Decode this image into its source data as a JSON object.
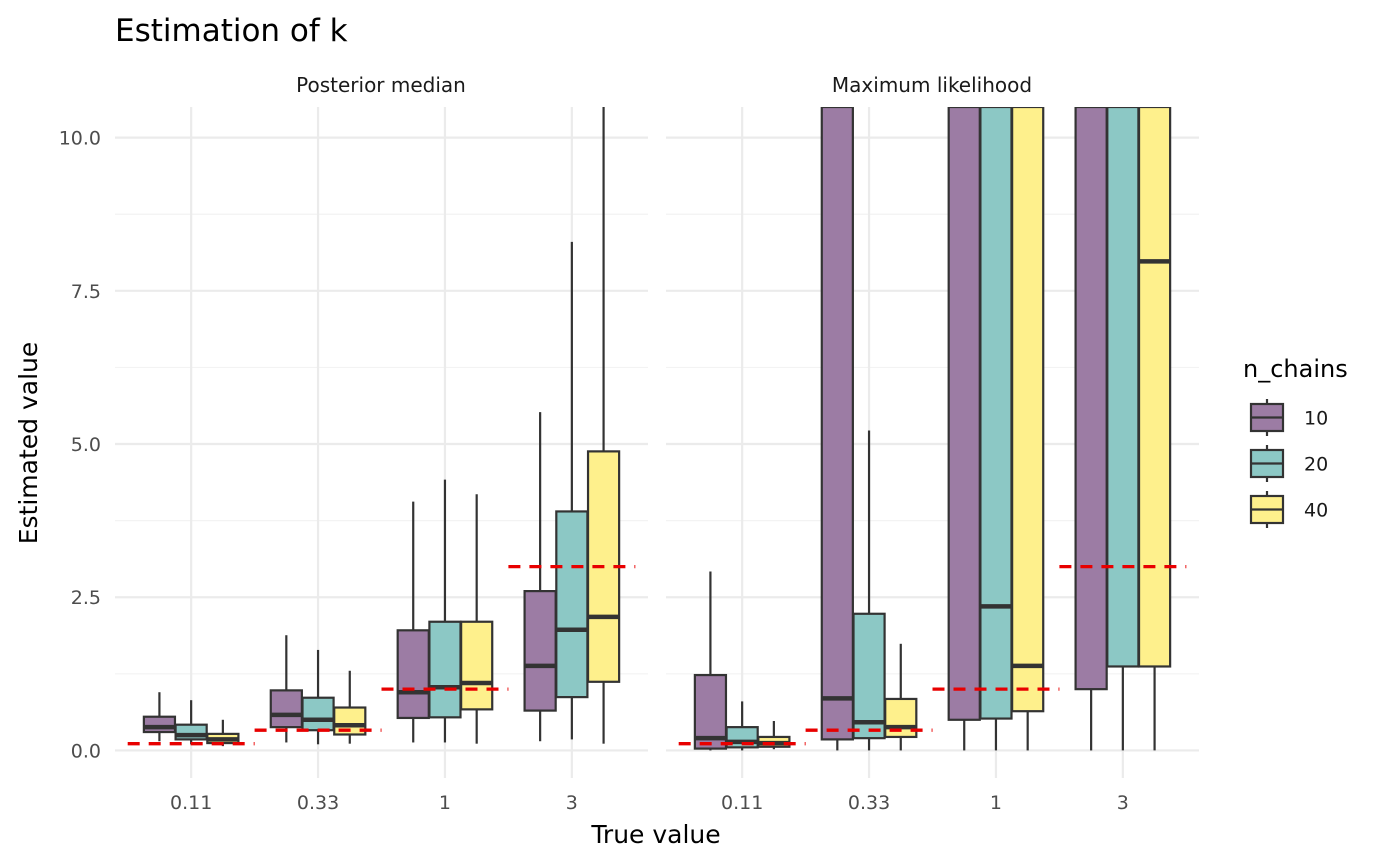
{
  "chart_data": {
    "type": "box",
    "title": "Estimation of k",
    "xlabel": "True value",
    "ylabel": "Estimated value",
    "ylim": [
      -0.45,
      10.5
    ],
    "yticks": [
      0,
      2.5,
      5,
      7.5,
      10
    ],
    "ytick_labels": [
      "0.0",
      "2.5",
      "5.0",
      "7.5",
      "10.0"
    ],
    "categories": [
      "0.11",
      "0.33",
      "1",
      "3"
    ],
    "true_values": [
      0.11,
      0.33,
      1,
      3
    ],
    "legend": {
      "title": "n_chains",
      "entries": [
        {
          "label": "10",
          "color": "#9C7CA4"
        },
        {
          "label": "20",
          "color": "#8CC8C5"
        },
        {
          "label": "40",
          "color": "#FEF08C"
        }
      ]
    },
    "reference_line_color": "#E80000",
    "panels": [
      {
        "name": "Posterior median",
        "boxes": [
          [
            {
              "lower": 0.15,
              "q1": 0.3,
              "median": 0.38,
              "q3": 0.55,
              "upper": 0.95
            },
            {
              "lower": 0.1,
              "q1": 0.18,
              "median": 0.25,
              "q3": 0.42,
              "upper": 0.82
            },
            {
              "lower": 0.07,
              "q1": 0.12,
              "median": 0.18,
              "q3": 0.27,
              "upper": 0.5
            }
          ],
          [
            {
              "lower": 0.13,
              "q1": 0.38,
              "median": 0.58,
              "q3": 0.98,
              "upper": 1.88
            },
            {
              "lower": 0.1,
              "q1": 0.33,
              "median": 0.5,
              "q3": 0.86,
              "upper": 1.64
            },
            {
              "lower": 0.11,
              "q1": 0.26,
              "median": 0.41,
              "q3": 0.7,
              "upper": 1.3
            }
          ],
          [
            {
              "lower": 0.13,
              "q1": 0.53,
              "median": 0.95,
              "q3": 1.96,
              "upper": 4.06
            },
            {
              "lower": 0.13,
              "q1": 0.54,
              "median": 1.03,
              "q3": 2.1,
              "upper": 4.42
            },
            {
              "lower": 0.11,
              "q1": 0.67,
              "median": 1.1,
              "q3": 2.1,
              "upper": 4.18
            }
          ],
          [
            {
              "lower": 0.15,
              "q1": 0.65,
              "median": 1.38,
              "q3": 2.6,
              "upper": 5.52
            },
            {
              "lower": 0.18,
              "q1": 0.87,
              "median": 1.97,
              "q3": 3.9,
              "upper": 8.3
            },
            {
              "lower": 0.11,
              "q1": 1.12,
              "median": 2.18,
              "q3": 4.88,
              "upper": 10.5
            }
          ]
        ]
      },
      {
        "name": "Maximum likelihood",
        "boxes": [
          [
            {
              "lower": 0.0,
              "q1": 0.03,
              "median": 0.2,
              "q3": 1.23,
              "upper": 2.92
            },
            {
              "lower": 0.0,
              "q1": 0.05,
              "median": 0.14,
              "q3": 0.38,
              "upper": 0.8
            },
            {
              "lower": 0.02,
              "q1": 0.06,
              "median": 0.12,
              "q3": 0.22,
              "upper": 0.48
            }
          ],
          [
            {
              "lower": 0.0,
              "q1": 0.18,
              "median": 0.85,
              "q3": 10.5,
              "upper": 10.5
            },
            {
              "lower": 0.0,
              "q1": 0.2,
              "median": 0.46,
              "q3": 2.23,
              "upper": 5.22
            },
            {
              "lower": 0.0,
              "q1": 0.22,
              "median": 0.38,
              "q3": 0.84,
              "upper": 1.74
            }
          ],
          [
            {
              "lower": 0.0,
              "q1": 0.5,
              "median": 10.5,
              "q3": 10.5,
              "upper": 10.5
            },
            {
              "lower": 0.0,
              "q1": 0.52,
              "median": 2.35,
              "q3": 10.5,
              "upper": 10.5
            },
            {
              "lower": 0.0,
              "q1": 0.64,
              "median": 1.38,
              "q3": 10.5,
              "upper": 10.5
            }
          ],
          [
            {
              "lower": 0.0,
              "q1": 1.0,
              "median": 10.5,
              "q3": 10.5,
              "upper": 10.5
            },
            {
              "lower": 0.0,
              "q1": 1.37,
              "median": 10.5,
              "q3": 10.5,
              "upper": 10.5
            },
            {
              "lower": 0.0,
              "q1": 1.37,
              "median": 7.98,
              "q3": 10.5,
              "upper": 10.5
            }
          ]
        ]
      }
    ]
  }
}
